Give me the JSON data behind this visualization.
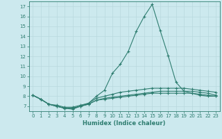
{
  "xlabel": "Humidex (Indice chaleur)",
  "background_color": "#cce9ee",
  "grid_color": "#b8d8de",
  "line_color": "#2e7d70",
  "x_values": [
    0,
    1,
    2,
    3,
    4,
    5,
    6,
    7,
    8,
    9,
    10,
    11,
    12,
    13,
    14,
    15,
    16,
    17,
    18,
    19,
    20,
    21,
    22,
    23
  ],
  "series": [
    [
      8.1,
      7.7,
      7.2,
      7.0,
      6.8,
      6.7,
      7.0,
      7.3,
      8.0,
      8.6,
      10.3,
      11.2,
      12.5,
      14.5,
      16.0,
      17.2,
      14.6,
      12.1,
      9.4,
      8.5,
      8.3,
      8.1,
      8.0,
      8.0
    ],
    [
      8.1,
      7.7,
      7.2,
      7.1,
      6.9,
      6.9,
      7.1,
      7.3,
      7.8,
      8.0,
      8.2,
      8.4,
      8.5,
      8.6,
      8.7,
      8.8,
      8.8,
      8.8,
      8.8,
      8.8,
      8.7,
      8.6,
      8.5,
      8.4
    ],
    [
      8.1,
      7.7,
      7.2,
      7.0,
      6.8,
      6.8,
      7.0,
      7.2,
      7.6,
      7.8,
      7.9,
      8.0,
      8.1,
      8.2,
      8.3,
      8.4,
      8.5,
      8.5,
      8.5,
      8.5,
      8.5,
      8.4,
      8.3,
      8.1
    ],
    [
      8.1,
      7.7,
      7.2,
      7.0,
      6.8,
      6.8,
      7.0,
      7.2,
      7.6,
      7.7,
      7.8,
      7.9,
      8.0,
      8.1,
      8.2,
      8.3,
      8.3,
      8.3,
      8.3,
      8.3,
      8.3,
      8.2,
      8.1,
      8.0
    ]
  ],
  "xlim": [
    -0.5,
    23.5
  ],
  "ylim": [
    6.5,
    17.5
  ],
  "yticks": [
    7,
    8,
    9,
    10,
    11,
    12,
    13,
    14,
    15,
    16,
    17
  ],
  "xticks": [
    0,
    1,
    2,
    3,
    4,
    5,
    6,
    7,
    8,
    9,
    10,
    11,
    12,
    13,
    14,
    15,
    16,
    17,
    18,
    19,
    20,
    21,
    22,
    23
  ],
  "xlabel_fontsize": 6.0,
  "tick_fontsize": 5.0,
  "linewidth": 0.8,
  "markersize": 2.5
}
